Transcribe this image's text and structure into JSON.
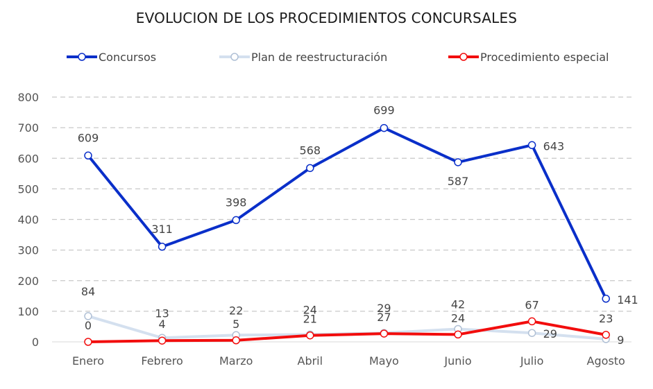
{
  "chart_data": {
    "type": "line",
    "title": "EVOLUCION DE LOS PROCEDIMIENTOS CONCURSALES",
    "xlabel": "",
    "ylabel": "",
    "ylim": [
      0,
      800
    ],
    "yticks": [
      0,
      100,
      200,
      300,
      400,
      500,
      600,
      700,
      800
    ],
    "grid": true,
    "legend_position": "top",
    "categories": [
      "Enero",
      "Febrero",
      "Marzo",
      "Abril",
      "Mayo",
      "Junio",
      "Julio",
      "Agosto"
    ],
    "series": [
      {
        "name": "Concursos",
        "color": "#0a2fc9",
        "values": [
          609,
          311,
          398,
          568,
          699,
          587,
          643,
          141
        ],
        "label_placement": [
          "above",
          "above",
          "above",
          "above",
          "above",
          "below",
          "right",
          "right"
        ]
      },
      {
        "name": "Plan de reestructuración",
        "color": "#d4e0ef",
        "values": [
          84,
          13,
          22,
          24,
          29,
          42,
          29,
          9
        ],
        "label_placement": [
          "far-above",
          "far-above",
          "far-above",
          "far-above",
          "far-above",
          "far-above",
          "right",
          "right"
        ]
      },
      {
        "name": "Procedimiento especial",
        "color": "#f20d0d",
        "values": [
          0,
          4,
          5,
          21,
          27,
          24,
          67,
          23
        ],
        "label_placement": [
          "above",
          "above",
          "above",
          "above",
          "above",
          "above",
          "above",
          "above"
        ]
      }
    ]
  }
}
